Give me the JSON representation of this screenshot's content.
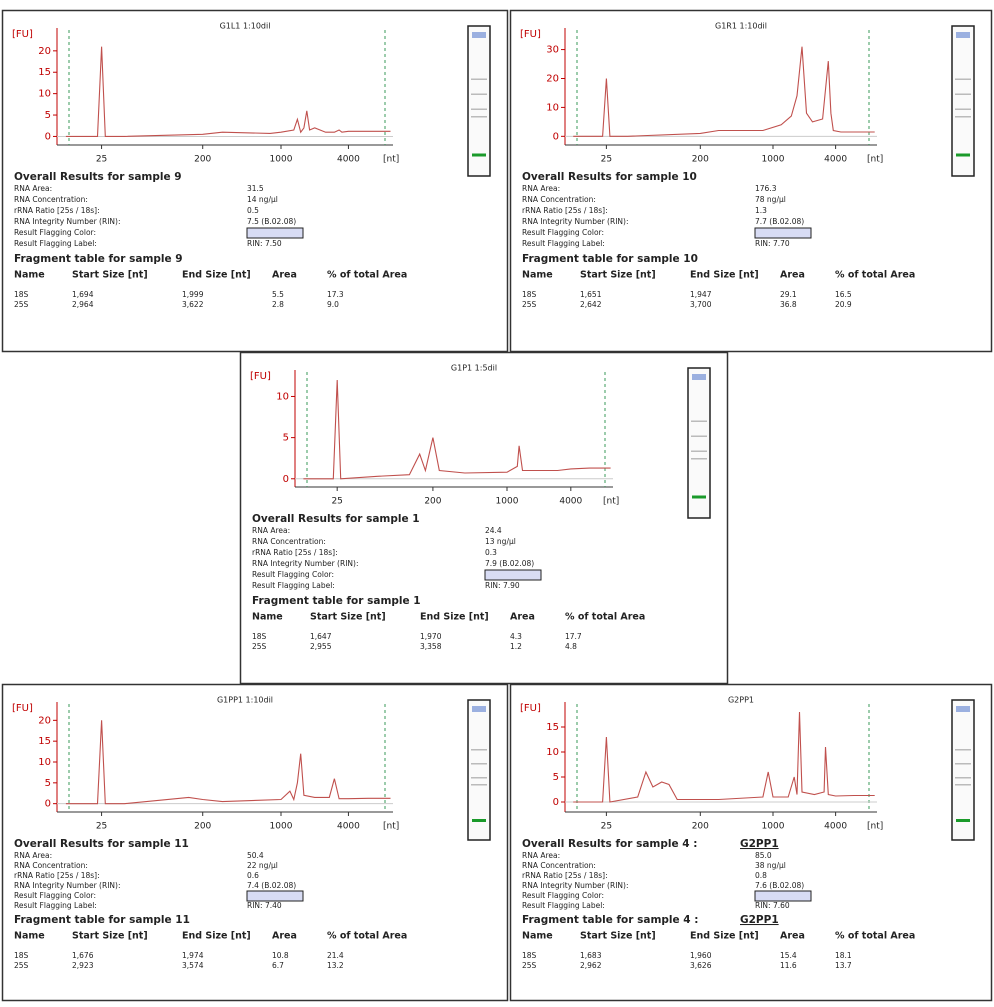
{
  "panels": [
    {
      "title": "G1L1 1:10dil",
      "chart": {
        "type": "line",
        "y_label": "[FU]",
        "x_label": "[nt]",
        "xscale": "log",
        "xlim": [
          10,
          10000
        ],
        "xticks": [
          25,
          200,
          1000,
          4000
        ],
        "ylim": [
          -2,
          23
        ],
        "yticks": [
          0,
          5,
          10,
          15,
          20
        ],
        "color": "#c0504d",
        "x": [
          12,
          23,
          25,
          27,
          40,
          200,
          300,
          800,
          1000,
          1300,
          1400,
          1500,
          1600,
          1700,
          1800,
          2000,
          2500,
          3000,
          3300,
          3500,
          4000,
          6000,
          9500
        ],
        "values": [
          0,
          0,
          21,
          0,
          0,
          0.5,
          1,
          0.7,
          1,
          1.5,
          4,
          1,
          2,
          6,
          1.5,
          2,
          1,
          1,
          1.5,
          1,
          1.2,
          1.2,
          1.2
        ]
      },
      "results_heading": "Overall Results for sample 9",
      "results": [
        {
          "label": "RNA Area:",
          "value": "31.5"
        },
        {
          "label": "RNA Concentration:",
          "value": "14 ng/µl"
        },
        {
          "label": "rRNA Ratio [25s / 18s]:",
          "value": "0.5"
        },
        {
          "label": "RNA Integrity Number (RIN):",
          "value": "7.5  (B.02.08)"
        },
        {
          "label": "Result Flagging Color:"
        },
        {
          "label": "Result Flagging Label:",
          "value": "RIN: 7.50"
        }
      ],
      "fragment_heading": "Fragment table for sample 9",
      "table": {
        "header": [
          "Name",
          "Start Size [nt]",
          "End Size [nt]",
          "Area",
          "% of total Area"
        ],
        "rows": [
          [
            "18S",
            "1,694",
            "1,999",
            "5.5",
            "17.3"
          ],
          [
            "25S",
            "2,964",
            "3,622",
            "2.8",
            "9.0"
          ]
        ]
      }
    },
    {
      "title": "G1R1 1:10dil",
      "chart": {
        "type": "line",
        "y_label": "[FU]",
        "x_label": "[nt]",
        "xscale": "log",
        "xlim": [
          10,
          10000
        ],
        "xticks": [
          25,
          200,
          1000,
          4000
        ],
        "ylim": [
          -3,
          34
        ],
        "yticks": [
          0,
          10,
          20,
          30
        ],
        "color": "#c0504d",
        "x": [
          12,
          23,
          25,
          27,
          40,
          200,
          300,
          800,
          1200,
          1500,
          1700,
          1900,
          2100,
          2400,
          3000,
          3400,
          3600,
          3800,
          4500,
          6000,
          9500
        ],
        "values": [
          0,
          0,
          20,
          0,
          0,
          1,
          2,
          2,
          4,
          7,
          14,
          31,
          8,
          5,
          6,
          26,
          8,
          2,
          1.5,
          1.5,
          1.5
        ]
      },
      "results_heading": "Overall Results for sample 10",
      "results": [
        {
          "label": "RNA Area:",
          "value": "176.3"
        },
        {
          "label": "RNA Concentration:",
          "value": "78 ng/µl"
        },
        {
          "label": "rRNA Ratio [25s / 18s]:",
          "value": "1.3"
        },
        {
          "label": "RNA Integrity Number (RIN):",
          "value": "7.7  (B.02.08)"
        },
        {
          "label": "Result Flagging Color:"
        },
        {
          "label": "Result Flagging Label:",
          "value": "RIN: 7.70"
        }
      ],
      "fragment_heading": "Fragment table for sample 10",
      "table": {
        "header": [
          "Name",
          "Start Size [nt]",
          "End Size [nt]",
          "Area",
          "% of total Area"
        ],
        "rows": [
          [
            "18S",
            "1,651",
            "1,947",
            "29.1",
            "16.5"
          ],
          [
            "25S",
            "2,642",
            "3,700",
            "36.8",
            "20.9"
          ]
        ]
      }
    },
    {
      "title": "G1P1 1:5dil",
      "chart": {
        "type": "line",
        "y_label": "[FU]",
        "x_label": "[nt]",
        "xscale": "log",
        "xlim": [
          10,
          10000
        ],
        "xticks": [
          25,
          200,
          1000,
          4000
        ],
        "ylim": [
          -1,
          12
        ],
        "yticks": [
          0,
          5,
          10
        ],
        "color": "#c0504d",
        "x": [
          12,
          23,
          25,
          27,
          60,
          120,
          150,
          170,
          200,
          230,
          400,
          1000,
          1250,
          1300,
          1400,
          2000,
          3000,
          4000,
          6000,
          9500
        ],
        "values": [
          0,
          0,
          12,
          0,
          0.3,
          0.5,
          3,
          1,
          5,
          1,
          0.7,
          0.8,
          1.5,
          4,
          1,
          1,
          1,
          1.2,
          1.3,
          1.3
        ]
      },
      "results_heading": "Overall Results for sample 1",
      "results": [
        {
          "label": "RNA Area:",
          "value": "24.4"
        },
        {
          "label": "RNA Concentration:",
          "value": "13 ng/µl"
        },
        {
          "label": "rRNA Ratio [25s / 18s]:",
          "value": "0.3"
        },
        {
          "label": "RNA Integrity Number (RIN):",
          "value": "7.9  (B.02.08)"
        },
        {
          "label": "Result Flagging Color:"
        },
        {
          "label": "Result Flagging Label:",
          "value": "RIN: 7.90"
        }
      ],
      "fragment_heading": "Fragment table for sample 1",
      "table": {
        "header": [
          "Name",
          "Start Size [nt]",
          "End Size [nt]",
          "Area",
          "% of total Area"
        ],
        "rows": [
          [
            "18S",
            "1,647",
            "1,970",
            "4.3",
            "17.7"
          ],
          [
            "25S",
            "2,955",
            "3,358",
            "1.2",
            "4.8"
          ]
        ]
      }
    },
    {
      "title": "G1PP1 1:10dil",
      "chart": {
        "type": "line",
        "y_label": "[FU]",
        "x_label": "[nt]",
        "xscale": "log",
        "xlim": [
          10,
          10000
        ],
        "xticks": [
          25,
          200,
          1000,
          4000
        ],
        "ylim": [
          -2,
          22
        ],
        "yticks": [
          0,
          5,
          10,
          15,
          20
        ],
        "color": "#c0504d",
        "x": [
          12,
          23,
          25,
          27,
          40,
          150,
          200,
          300,
          1000,
          1200,
          1300,
          1400,
          1500,
          1600,
          2000,
          2700,
          3000,
          3300,
          4000,
          6000,
          9500
        ],
        "values": [
          0,
          0,
          20,
          0,
          0,
          1.5,
          1,
          0.5,
          1,
          3,
          1,
          5,
          12,
          2,
          1.5,
          1.5,
          6,
          1.2,
          1.2,
          1.3,
          1.3
        ]
      },
      "results_heading": "Overall Results for sample 11",
      "results": [
        {
          "label": "RNA Area:",
          "value": "50.4"
        },
        {
          "label": "RNA Concentration:",
          "value": "22 ng/µl"
        },
        {
          "label": "rRNA Ratio [25s / 18s]:",
          "value": "0.6"
        },
        {
          "label": "RNA Integrity Number (RIN):",
          "value": "7.4  (B.02.08)"
        },
        {
          "label": "Result Flagging Color:"
        },
        {
          "label": "Result Flagging Label:",
          "value": "RIN: 7.40"
        }
      ],
      "fragment_heading": "Fragment table for sample 11",
      "table": {
        "header": [
          "Name",
          "Start Size [nt]",
          "End Size [nt]",
          "Area",
          "% of total Area"
        ],
        "rows": [
          [
            "18S",
            "1,676",
            "1,974",
            "10.8",
            "21.4"
          ],
          [
            "25S",
            "2,923",
            "3,574",
            "6.7",
            "13.2"
          ]
        ]
      }
    },
    {
      "title": "G2PP1",
      "chart": {
        "type": "line",
        "y_label": "[FU]",
        "x_label": "[nt]",
        "xscale": "log",
        "xlim": [
          10,
          10000
        ],
        "xticks": [
          25,
          200,
          1000,
          4000
        ],
        "ylim": [
          -2,
          18
        ],
        "yticks": [
          0,
          5,
          10,
          15
        ],
        "color": "#c0504d",
        "x": [
          12,
          23,
          25,
          27,
          50,
          60,
          70,
          85,
          100,
          120,
          300,
          800,
          900,
          1000,
          1400,
          1600,
          1700,
          1800,
          1900,
          2500,
          3100,
          3200,
          3400,
          4000,
          6000,
          9500
        ],
        "values": [
          0,
          0,
          13,
          0,
          1,
          6,
          3,
          4,
          3.5,
          0.5,
          0.5,
          1,
          6,
          1,
          1,
          5,
          1.5,
          18,
          2,
          1.5,
          2,
          11,
          1.5,
          1.2,
          1.3,
          1.3
        ]
      },
      "results_heading": "Overall Results for sample 4 :",
      "results_tag": "G2PP1",
      "results": [
        {
          "label": "RNA Area:",
          "value": "85.0"
        },
        {
          "label": "RNA Concentration:",
          "value": "38 ng/µl"
        },
        {
          "label": "rRNA Ratio [25s / 18s]:",
          "value": "0.8"
        },
        {
          "label": "RNA Integrity Number (RIN):",
          "value": "7.6  (B.02.08)"
        },
        {
          "label": "Result Flagging Color:"
        },
        {
          "label": "Result Flagging Label:",
          "value": "RIN: 7.60"
        }
      ],
      "fragment_heading": "Fragment table for sample 4 :",
      "fragment_tag": "G2PP1",
      "table": {
        "header": [
          "Name",
          "Start Size [nt]",
          "End Size [nt]",
          "Area",
          "% of total Area"
        ],
        "rows": [
          [
            "18S",
            "1,683",
            "1,960",
            "15.4",
            "18.1"
          ],
          [
            "25S",
            "2,962",
            "3,626",
            "11.6",
            "13.7"
          ]
        ]
      }
    }
  ]
}
